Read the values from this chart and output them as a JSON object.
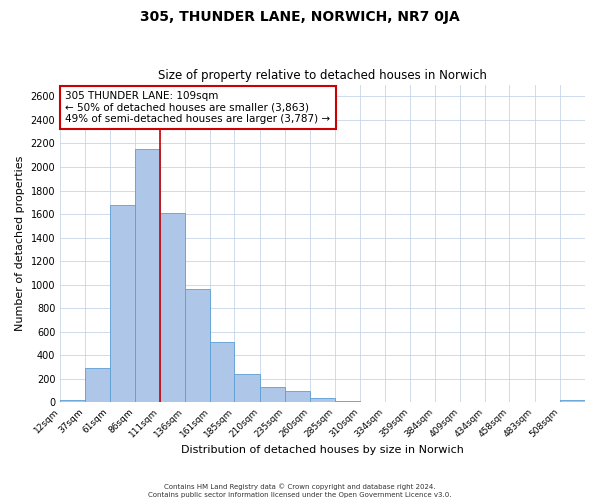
{
  "title": "305, THUNDER LANE, NORWICH, NR7 0JA",
  "subtitle": "Size of property relative to detached houses in Norwich",
  "xlabel": "Distribution of detached houses by size in Norwich",
  "ylabel": "Number of detached properties",
  "bin_labels": [
    "12sqm",
    "37sqm",
    "61sqm",
    "86sqm",
    "111sqm",
    "136sqm",
    "161sqm",
    "185sqm",
    "210sqm",
    "235sqm",
    "260sqm",
    "285sqm",
    "310sqm",
    "334sqm",
    "359sqm",
    "384sqm",
    "409sqm",
    "434sqm",
    "458sqm",
    "483sqm",
    "508sqm"
  ],
  "bin_edges": [
    12,
    37,
    61,
    86,
    111,
    136,
    161,
    185,
    210,
    235,
    260,
    285,
    310,
    334,
    359,
    384,
    409,
    434,
    458,
    483,
    508
  ],
  "bar_heights": [
    20,
    295,
    1680,
    2150,
    1610,
    960,
    510,
    245,
    130,
    100,
    35,
    15,
    5,
    5,
    5,
    5,
    5,
    5,
    5,
    5,
    20
  ],
  "bar_color": "#aec6e8",
  "bar_edge_color": "#5a9fd4",
  "vline_x": 111,
  "vline_color": "#cc0000",
  "ylim": [
    0,
    2700
  ],
  "yticks": [
    0,
    200,
    400,
    600,
    800,
    1000,
    1200,
    1400,
    1600,
    1800,
    2000,
    2200,
    2400,
    2600
  ],
  "annotation_title": "305 THUNDER LANE: 109sqm",
  "annotation_line1": "← 50% of detached houses are smaller (3,863)",
  "annotation_line2": "49% of semi-detached houses are larger (3,787) →",
  "annotation_box_color": "#cc0000",
  "footer_line1": "Contains HM Land Registry data © Crown copyright and database right 2024.",
  "footer_line2": "Contains public sector information licensed under the Open Government Licence v3.0.",
  "background_color": "#ffffff",
  "grid_color": "#c8d4e8"
}
